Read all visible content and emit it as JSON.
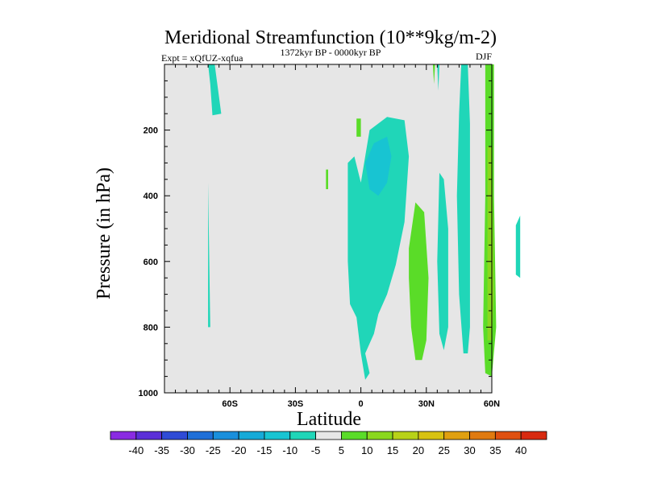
{
  "chart_data": {
    "type": "heatmap",
    "title": "Meridional Streamfunction (10**9kg/m-2)",
    "subtitle_left": "Expt = xQfUZ-xqfua",
    "subtitle_center": "1372kyr BP - 0000kyr BP",
    "subtitle_right": "DJF",
    "xlabel": "Latitude",
    "ylabel": "Pressure (in hPa)",
    "xlim": [
      -90,
      60
    ],
    "ylim": [
      0,
      1000
    ],
    "x_ticks": [
      {
        "value": -60,
        "label": "60S"
      },
      {
        "value": -30,
        "label": "30S"
      },
      {
        "value": 0,
        "label": "0"
      },
      {
        "value": 30,
        "label": "30N"
      },
      {
        "value": 60,
        "label": "60N"
      }
    ],
    "y_ticks": [
      {
        "value": 200,
        "label": "200"
      },
      {
        "value": 400,
        "label": "400"
      },
      {
        "value": 600,
        "label": "600"
      },
      {
        "value": 800,
        "label": "800"
      },
      {
        "value": 1000,
        "label": "1000"
      }
    ],
    "colorbar": {
      "labels": [
        "-40",
        "-35",
        "-30",
        "-25",
        "-20",
        "-15",
        "-10",
        "-5",
        "5",
        "10",
        "15",
        "20",
        "25",
        "30",
        "35",
        "40"
      ],
      "colors": [
        "#8a2be2",
        "#5b2fd8",
        "#2f4bd6",
        "#1f6fd8",
        "#1a8fdc",
        "#16aad8",
        "#18c4d2",
        "#20d6b8",
        "#e6e6e6",
        "#5adc28",
        "#8ad81e",
        "#b8d218",
        "#d8c212",
        "#e0a010",
        "#e07a10",
        "#e05010",
        "#d82a10"
      ]
    },
    "regions": [
      {
        "name": "neg-5-to-10",
        "level": "-5",
        "color": "#20d6b8",
        "points": [
          [
            -70,
            0
          ],
          [
            -67,
            0
          ],
          [
            -66,
            50
          ],
          [
            -64,
            150
          ],
          [
            -68,
            155
          ],
          [
            -69,
            60
          ]
        ]
      },
      {
        "name": "neg-5-to-10-b",
        "level": "-5",
        "color": "#20d6b8",
        "points": [
          [
            -70,
            360
          ],
          [
            -69,
            800
          ],
          [
            -70,
            800
          ]
        ]
      },
      {
        "name": "tropics-negative",
        "level": "-5",
        "color": "#20d6b8",
        "points": [
          [
            -6,
            300
          ],
          [
            -3,
            280
          ],
          [
            0,
            360
          ],
          [
            4,
            200
          ],
          [
            12,
            160
          ],
          [
            20,
            170
          ],
          [
            22,
            280
          ],
          [
            20,
            480
          ],
          [
            16,
            610
          ],
          [
            12,
            700
          ],
          [
            8,
            760
          ],
          [
            6,
            820
          ],
          [
            2,
            880
          ],
          [
            4,
            940
          ],
          [
            2,
            960
          ],
          [
            0,
            880
          ],
          [
            -2,
            770
          ],
          [
            -5,
            730
          ],
          [
            -6,
            600
          ]
        ]
      },
      {
        "name": "tropics-inner",
        "level": "-10",
        "color": "#18c4d2",
        "points": [
          [
            2,
            300
          ],
          [
            6,
            240
          ],
          [
            12,
            220
          ],
          [
            14,
            280
          ],
          [
            12,
            360
          ],
          [
            8,
            400
          ],
          [
            4,
            380
          ]
        ]
      },
      {
        "name": "nh-midlat-neg",
        "level": "-5",
        "color": "#20d6b8",
        "points": [
          [
            36,
            330
          ],
          [
            38,
            350
          ],
          [
            40,
            500
          ],
          [
            40,
            800
          ],
          [
            38,
            870
          ],
          [
            36,
            820
          ],
          [
            35,
            600
          ]
        ]
      },
      {
        "name": "nh-midlat-neg-2",
        "level": "-5",
        "color": "#20d6b8",
        "points": [
          [
            46,
            0
          ],
          [
            49,
            0
          ],
          [
            50,
            180
          ],
          [
            50,
            600
          ],
          [
            50,
            800
          ],
          [
            49,
            880
          ],
          [
            47,
            880
          ],
          [
            45,
            700
          ],
          [
            44,
            400
          ],
          [
            45,
            150
          ]
        ]
      },
      {
        "name": "nh-pos",
        "level": "5",
        "color": "#5adc28",
        "points": [
          [
            22,
            560
          ],
          [
            25,
            420
          ],
          [
            29,
            450
          ],
          [
            31,
            650
          ],
          [
            30,
            840
          ],
          [
            28,
            900
          ],
          [
            25,
            900
          ],
          [
            23,
            800
          ],
          [
            22,
            650
          ]
        ]
      },
      {
        "name": "polar-pos",
        "level": "5",
        "color": "#5adc28",
        "points": [
          [
            57,
            0
          ],
          [
            61,
            0
          ],
          [
            61,
            400
          ],
          [
            62,
            800
          ],
          [
            60,
            950
          ],
          [
            57,
            940
          ],
          [
            56,
            800
          ],
          [
            57,
            400
          ]
        ]
      },
      {
        "name": "polar-pos-inner",
        "level": "10",
        "color": "#8ad81e",
        "points": [
          [
            58,
            250
          ],
          [
            60,
            250
          ],
          [
            61,
            700
          ],
          [
            60,
            840
          ],
          [
            58,
            840
          ],
          [
            58,
            600
          ]
        ]
      },
      {
        "name": "small-pos-1",
        "level": "5",
        "color": "#5adc28",
        "points": [
          [
            -2,
            165
          ],
          [
            0,
            165
          ],
          [
            0,
            220
          ],
          [
            -2,
            220
          ]
        ]
      },
      {
        "name": "small-pos-2",
        "level": "5",
        "color": "#5adc28",
        "points": [
          [
            -16,
            320
          ],
          [
            -15,
            320
          ],
          [
            -15,
            380
          ],
          [
            -16,
            380
          ]
        ]
      },
      {
        "name": "spike-1",
        "level": "-5",
        "color": "#20d6b8",
        "points": [
          [
            35,
            0
          ],
          [
            36,
            0
          ],
          [
            35.5,
            80
          ]
        ]
      },
      {
        "name": "spike-2",
        "level": "5",
        "color": "#5adc28",
        "points": [
          [
            33,
            0
          ],
          [
            34,
            0
          ],
          [
            33.5,
            60
          ]
        ]
      },
      {
        "name": "edge-neg",
        "level": "-5",
        "color": "#20d6b8",
        "points": [
          [
            71,
            490
          ],
          [
            73,
            460
          ],
          [
            73,
            650
          ],
          [
            71,
            640
          ]
        ]
      }
    ]
  }
}
